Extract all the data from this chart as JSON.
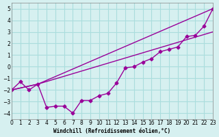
{
  "xlabel": "Windchill (Refroidissement éolien,°C)",
  "xlim": [
    0,
    23
  ],
  "ylim": [
    -4.5,
    5.5
  ],
  "yticks": [
    -4,
    -3,
    -2,
    -1,
    0,
    1,
    2,
    3,
    4,
    5
  ],
  "xticks": [
    0,
    1,
    2,
    3,
    4,
    5,
    6,
    7,
    8,
    9,
    10,
    11,
    12,
    13,
    14,
    15,
    16,
    17,
    18,
    19,
    20,
    21,
    22,
    23
  ],
  "bg_color": "#d6f0f0",
  "grid_color": "#aadddd",
  "line_color": "#990099",
  "line1_x": [
    0,
    1,
    2,
    3,
    4,
    5,
    6,
    7,
    8,
    9,
    10,
    11,
    12,
    13,
    14,
    15,
    16,
    17,
    18,
    19,
    20,
    21,
    22,
    23
  ],
  "line1_y": [
    -2.0,
    -1.3,
    -2.0,
    -1.5,
    -3.5,
    -3.4,
    -3.4,
    -4.0,
    -2.9,
    -2.9,
    -2.5,
    -2.3,
    -1.4,
    -0.1,
    0.0,
    0.4,
    0.7,
    1.3,
    1.5,
    1.7,
    2.6,
    2.7,
    3.5,
    5.0
  ],
  "line2_x": [
    0,
    3,
    23
  ],
  "line2_y": [
    -2.0,
    -1.5,
    5.0
  ],
  "line3_x": [
    0,
    3,
    23
  ],
  "line3_y": [
    -2.0,
    -1.5,
    3.0
  ]
}
